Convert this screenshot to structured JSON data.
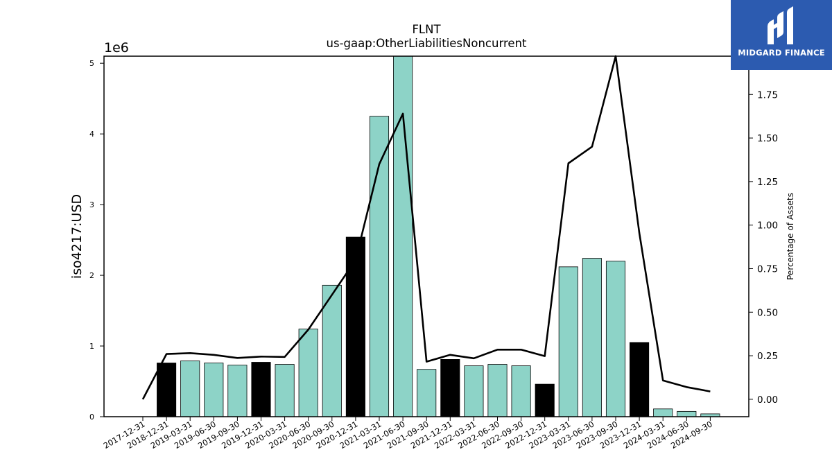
{
  "chart_data": {
    "type": "bar",
    "title": "FLNT",
    "subtitle": "us-gaap:OtherLiabilitiesNoncurrent",
    "ylabel": "iso4217:USD",
    "y_offset_label": "1e6",
    "y2label": "Percentage of Assets",
    "ylim": [
      0,
      5100000
    ],
    "y2lim": [
      -0.1,
      1.97
    ],
    "yticks": [
      0,
      1,
      2,
      3,
      4,
      5
    ],
    "y2ticks": [
      "0.00",
      "0.25",
      "0.50",
      "0.75",
      "1.00",
      "1.25",
      "1.50",
      "1.75"
    ],
    "categories": [
      "2017-12-31",
      "2018-12-31",
      "2019-03-31",
      "2019-06-30",
      "2019-09-30",
      "2019-12-31",
      "2020-03-31",
      "2020-06-30",
      "2020-09-30",
      "2020-12-31",
      "2021-03-31",
      "2021-06-30",
      "2021-09-30",
      "2021-12-31",
      "2022-03-31",
      "2022-06-30",
      "2022-09-30",
      "2022-12-31",
      "2023-03-31",
      "2023-06-30",
      "2023-09-30",
      "2023-12-31",
      "2024-03-31",
      "2024-06-30",
      "2024-09-30"
    ],
    "series": [
      {
        "kind": "bar",
        "values": [
          0,
          760000,
          790000,
          760000,
          730000,
          770000,
          740000,
          1240000,
          1860000,
          2540000,
          4250000,
          5100000,
          670000,
          810000,
          720000,
          740000,
          720000,
          460000,
          2120000,
          2240000,
          2200000,
          1050000,
          110000,
          75000,
          40000
        ],
        "annual": [
          false,
          true,
          false,
          false,
          false,
          true,
          false,
          false,
          false,
          true,
          false,
          false,
          false,
          true,
          false,
          false,
          false,
          true,
          false,
          false,
          false,
          true,
          false,
          false,
          false
        ]
      },
      {
        "kind": "line",
        "axis": "right",
        "values": [
          0.0,
          0.26,
          0.265,
          0.255,
          0.237,
          0.245,
          0.243,
          0.4,
          0.6,
          0.8,
          1.35,
          1.64,
          0.216,
          0.255,
          0.235,
          0.285,
          0.285,
          0.248,
          1.355,
          1.45,
          1.97,
          0.955,
          0.108,
          0.07,
          0.045
        ]
      }
    ],
    "colors": {
      "quarterly": "#8dd3c7",
      "annual": "#000000",
      "line": "#000000"
    },
    "grid": false
  },
  "brand": {
    "name": "MIDGARD FINANCE",
    "color": "#2c5bb0"
  }
}
